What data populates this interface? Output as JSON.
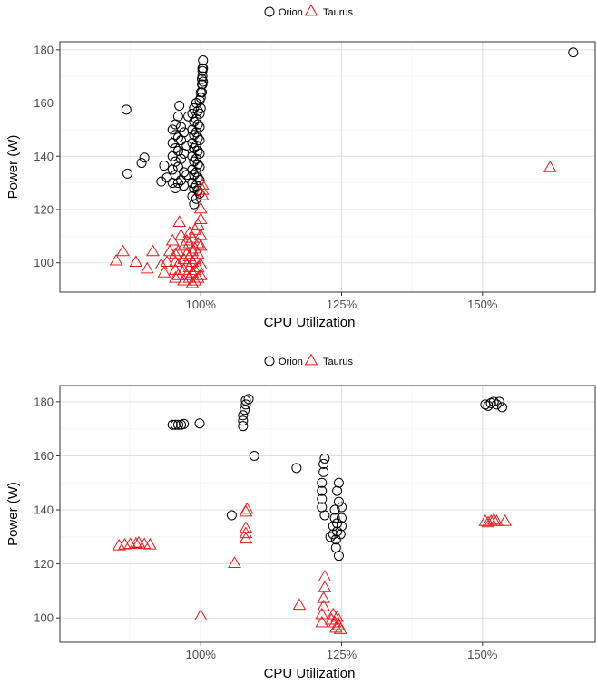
{
  "colors": {
    "Orion": "#000000",
    "Taurus": "#e41a1c",
    "grid_major": "#e0e0e0",
    "grid_minor": "#f0f0f0",
    "panel_border": "#333333"
  },
  "chart_data": [
    {
      "type": "scatter",
      "xlabel": "CPU Utilization",
      "ylabel": "Power (W)",
      "xlim": [
        0.75,
        1.7
      ],
      "ylim": [
        89,
        183
      ],
      "x_ticks": [
        1.0,
        1.25,
        1.5
      ],
      "x_tick_labels": [
        "100%",
        "125%",
        "150%"
      ],
      "y_ticks": [
        100,
        120,
        140,
        160,
        180
      ],
      "y_tick_labels": [
        "100",
        "120",
        "140",
        "160",
        "180"
      ],
      "grid": true,
      "legend_position": "top",
      "series": [
        {
          "name": "Orion",
          "marker": "circle",
          "points": [
            [
              0.868,
              157.5
            ],
            [
              0.87,
              133.5
            ],
            [
              0.895,
              137.5
            ],
            [
              0.9,
              139.5
            ],
            [
              0.93,
              130.5
            ],
            [
              0.935,
              136.5
            ],
            [
              0.94,
              132.0
            ],
            [
              0.95,
              130
            ],
            [
              0.95,
              135
            ],
            [
              0.95,
              140
            ],
            [
              0.95,
              145
            ],
            [
              0.95,
              150
            ],
            [
              0.955,
              128
            ],
            [
              0.955,
              133
            ],
            [
              0.955,
              138
            ],
            [
              0.955,
              143
            ],
            [
              0.955,
              148
            ],
            [
              0.955,
              152
            ],
            [
              0.96,
              130
            ],
            [
              0.96,
              136
            ],
            [
              0.96,
              142
            ],
            [
              0.96,
              147
            ],
            [
              0.96,
              155
            ],
            [
              0.962,
              159
            ],
            [
              0.965,
              131
            ],
            [
              0.965,
              139
            ],
            [
              0.965,
              146
            ],
            [
              0.965,
              151
            ],
            [
              0.97,
              129
            ],
            [
              0.97,
              134
            ],
            [
              0.97,
              141
            ],
            [
              0.97,
              149
            ],
            [
              0.975,
              133
            ],
            [
              0.975,
              144
            ],
            [
              0.978,
              155
            ],
            [
              0.985,
              125
            ],
            [
              0.985,
              130
            ],
            [
              0.985,
              135
            ],
            [
              0.985,
              140
            ],
            [
              0.985,
              145
            ],
            [
              0.985,
              150
            ],
            [
              0.985,
              156
            ],
            [
              0.988,
              122
            ],
            [
              0.988,
              128
            ],
            [
              0.988,
              133
            ],
            [
              0.988,
              138
            ],
            [
              0.988,
              143
            ],
            [
              0.988,
              148
            ],
            [
              0.988,
              153
            ],
            [
              0.988,
              158
            ],
            [
              0.992,
              124
            ],
            [
              0.992,
              129
            ],
            [
              0.992,
              134
            ],
            [
              0.992,
              139
            ],
            [
              0.992,
              144
            ],
            [
              0.992,
              149
            ],
            [
              0.992,
              154
            ],
            [
              0.992,
              160
            ],
            [
              0.995,
              127
            ],
            [
              0.995,
              132
            ],
            [
              0.995,
              137
            ],
            [
              0.995,
              142
            ],
            [
              0.995,
              147
            ],
            [
              0.995,
              152
            ],
            [
              0.995,
              157
            ],
            [
              0.998,
              126
            ],
            [
              0.998,
              131
            ],
            [
              0.998,
              136
            ],
            [
              0.998,
              141
            ],
            [
              0.998,
              146
            ],
            [
              0.998,
              151
            ],
            [
              0.998,
              156
            ],
            [
              0.998,
              161
            ],
            [
              1.0,
              158
            ],
            [
              1.0,
              162
            ],
            [
              1.0,
              164
            ],
            [
              1.002,
              164
            ],
            [
              1.002,
              167
            ],
            [
              1.002,
              169
            ],
            [
              1.003,
              167
            ],
            [
              1.003,
              170
            ],
            [
              1.003,
              172
            ],
            [
              1.003,
              173
            ],
            [
              1.004,
              168
            ],
            [
              1.004,
              173
            ],
            [
              1.004,
              176
            ],
            [
              1.661,
              179
            ]
          ]
        },
        {
          "name": "Taurus",
          "marker": "triangle",
          "points": [
            [
              0.85,
              100.5
            ],
            [
              0.862,
              104
            ],
            [
              0.885,
              100
            ],
            [
              0.905,
              97.5
            ],
            [
              0.915,
              104
            ],
            [
              0.93,
              99
            ],
            [
              0.935,
              96
            ],
            [
              0.94,
              100
            ],
            [
              0.945,
              104
            ],
            [
              0.95,
              108
            ],
            [
              0.955,
              94
            ],
            [
              0.955,
              97
            ],
            [
              0.955,
              100
            ],
            [
              0.955,
              103
            ],
            [
              0.96,
              95
            ],
            [
              0.96,
              99
            ],
            [
              0.96,
              104
            ],
            [
              0.962,
              115
            ],
            [
              0.965,
              110
            ],
            [
              0.97,
              93
            ],
            [
              0.97,
              97
            ],
            [
              0.97,
              101
            ],
            [
              0.97,
              106
            ],
            [
              0.975,
              95
            ],
            [
              0.975,
              99
            ],
            [
              0.975,
              103
            ],
            [
              0.975,
              108
            ],
            [
              0.98,
              94
            ],
            [
              0.98,
              98
            ],
            [
              0.98,
              102
            ],
            [
              0.98,
              107
            ],
            [
              0.98,
              111
            ],
            [
              0.985,
              92
            ],
            [
              0.985,
              96
            ],
            [
              0.985,
              100
            ],
            [
              0.985,
              104
            ],
            [
              0.985,
              109
            ],
            [
              0.99,
              93
            ],
            [
              0.99,
              97
            ],
            [
              0.99,
              101
            ],
            [
              0.99,
              105
            ],
            [
              0.99,
              112
            ],
            [
              0.995,
              94
            ],
            [
              0.995,
              98
            ],
            [
              0.995,
              103
            ],
            [
              0.995,
              107
            ],
            [
              0.995,
              114
            ],
            [
              1.0,
              95
            ],
            [
              1.0,
              99
            ],
            [
              1.0,
              106
            ],
            [
              1.0,
              110
            ],
            [
              1.0,
              116
            ],
            [
              1.0,
              120
            ],
            [
              1.003,
              125
            ],
            [
              1.003,
              127
            ],
            [
              1.003,
              129
            ],
            [
              1.62,
              135.5
            ]
          ]
        }
      ]
    },
    {
      "type": "scatter",
      "xlabel": "CPU Utilization",
      "ylabel": "Power (W)",
      "xlim": [
        0.75,
        1.7
      ],
      "ylim": [
        91,
        186
      ],
      "x_ticks": [
        1.0,
        1.25,
        1.5
      ],
      "x_tick_labels": [
        "100%",
        "125%",
        "150%"
      ],
      "y_ticks": [
        100,
        120,
        140,
        160,
        180
      ],
      "y_tick_labels": [
        "100",
        "120",
        "140",
        "160",
        "180"
      ],
      "grid": true,
      "legend_position": "top",
      "series": [
        {
          "name": "Orion",
          "marker": "circle",
          "points": [
            [
              0.95,
              171.5
            ],
            [
              0.955,
              171.5
            ],
            [
              0.96,
              171.5
            ],
            [
              0.965,
              171.5
            ],
            [
              0.97,
              171.8
            ],
            [
              0.998,
              172
            ],
            [
              1.075,
              171
            ],
            [
              1.075,
              173
            ],
            [
              1.075,
              175
            ],
            [
              1.078,
              177
            ],
            [
              1.08,
              179
            ],
            [
              1.08,
              180.5
            ],
            [
              1.085,
              181
            ],
            [
              1.095,
              160
            ],
            [
              1.055,
              138
            ],
            [
              1.17,
              155.5
            ],
            [
              1.215,
              141
            ],
            [
              1.215,
              144
            ],
            [
              1.215,
              147
            ],
            [
              1.215,
              150
            ],
            [
              1.218,
              154
            ],
            [
              1.218,
              157
            ],
            [
              1.22,
              159
            ],
            [
              1.22,
              138
            ],
            [
              1.23,
              130
            ],
            [
              1.235,
              131
            ],
            [
              1.235,
              134
            ],
            [
              1.238,
              137
            ],
            [
              1.238,
              140
            ],
            [
              1.24,
              126
            ],
            [
              1.24,
              129
            ],
            [
              1.242,
              132
            ],
            [
              1.242,
              135
            ],
            [
              1.242,
              147
            ],
            [
              1.245,
              143
            ],
            [
              1.245,
              150
            ],
            [
              1.245,
              123
            ],
            [
              1.248,
              131
            ],
            [
              1.25,
              134
            ],
            [
              1.25,
              137
            ],
            [
              1.25,
              141
            ],
            [
              1.505,
              179
            ],
            [
              1.51,
              178.5
            ],
            [
              1.515,
              179.5
            ],
            [
              1.52,
              180
            ],
            [
              1.525,
              179
            ],
            [
              1.53,
              180
            ],
            [
              1.535,
              178
            ]
          ]
        },
        {
          "name": "Taurus",
          "marker": "triangle",
          "points": [
            [
              0.855,
              126.5
            ],
            [
              0.865,
              126.8
            ],
            [
              0.875,
              127
            ],
            [
              0.885,
              127.2
            ],
            [
              0.89,
              127.5
            ],
            [
              0.9,
              127
            ],
            [
              0.91,
              126.8
            ],
            [
              1.0,
              100.5
            ],
            [
              1.06,
              120
            ],
            [
              1.08,
              129
            ],
            [
              1.08,
              131
            ],
            [
              1.08,
              133
            ],
            [
              1.08,
              139
            ],
            [
              1.082,
              140
            ],
            [
              1.175,
              104.5
            ],
            [
              1.215,
              98
            ],
            [
              1.215,
              101
            ],
            [
              1.218,
              104
            ],
            [
              1.218,
              107
            ],
            [
              1.22,
              111
            ],
            [
              1.22,
              115
            ],
            [
              1.232,
              99
            ],
            [
              1.235,
              101
            ],
            [
              1.238,
              98
            ],
            [
              1.24,
              96
            ],
            [
              1.242,
              100
            ],
            [
              1.245,
              97
            ],
            [
              1.248,
              95.5
            ],
            [
              1.505,
              135.5
            ],
            [
              1.51,
              135
            ],
            [
              1.515,
              135.5
            ],
            [
              1.52,
              136
            ],
            [
              1.525,
              135.5
            ],
            [
              1.54,
              135.5
            ]
          ]
        }
      ]
    }
  ]
}
